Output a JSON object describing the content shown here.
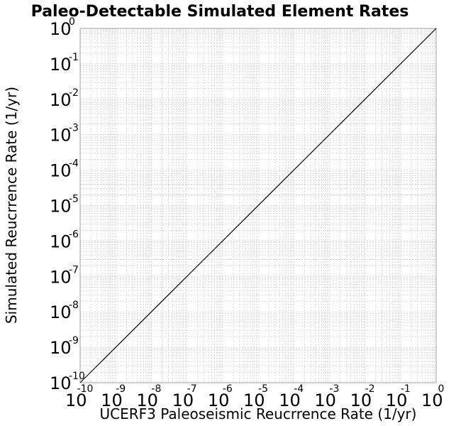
{
  "chart_data": {
    "type": "line",
    "title": "Paleo-Detectable Simulated Element Rates",
    "xlabel": "UCERF3 Paleoseismic Reucrrence Rate (1/yr)",
    "ylabel": "Simulated Reucrrence Rate (1/yr)",
    "x_scale": "log",
    "y_scale": "log",
    "xlim": [
      1e-10,
      1
    ],
    "ylim": [
      1e-10,
      1
    ],
    "grid": true,
    "x_ticks": [
      {
        "base": "10",
        "exp": "-10",
        "value": 1e-10
      },
      {
        "base": "10",
        "exp": "-9",
        "value": 1e-09
      },
      {
        "base": "10",
        "exp": "-8",
        "value": 1e-08
      },
      {
        "base": "10",
        "exp": "-7",
        "value": 1e-07
      },
      {
        "base": "10",
        "exp": "-6",
        "value": 1e-06
      },
      {
        "base": "10",
        "exp": "-5",
        "value": 1e-05
      },
      {
        "base": "10",
        "exp": "-4",
        "value": 0.0001
      },
      {
        "base": "10",
        "exp": "-3",
        "value": 0.001
      },
      {
        "base": "10",
        "exp": "-2",
        "value": 0.01
      },
      {
        "base": "10",
        "exp": "-1",
        "value": 0.1
      },
      {
        "base": "10",
        "exp": "0",
        "value": 1
      }
    ],
    "y_ticks": [
      {
        "base": "10",
        "exp": "-10",
        "value": 1e-10
      },
      {
        "base": "10",
        "exp": "-9",
        "value": 1e-09
      },
      {
        "base": "10",
        "exp": "-8",
        "value": 1e-08
      },
      {
        "base": "10",
        "exp": "-7",
        "value": 1e-07
      },
      {
        "base": "10",
        "exp": "-6",
        "value": 1e-06
      },
      {
        "base": "10",
        "exp": "-5",
        "value": 1e-05
      },
      {
        "base": "10",
        "exp": "-4",
        "value": 0.0001
      },
      {
        "base": "10",
        "exp": "-3",
        "value": 0.001
      },
      {
        "base": "10",
        "exp": "-2",
        "value": 0.01
      },
      {
        "base": "10",
        "exp": "-1",
        "value": 0.1
      },
      {
        "base": "10",
        "exp": "0",
        "value": 1
      }
    ],
    "series": [
      {
        "x": [
          1e-10,
          1
        ],
        "y": [
          1e-10,
          1
        ],
        "color": "#000000"
      }
    ],
    "colors": {
      "grid": "#dcdcdc",
      "frame": "#a0a0a0",
      "line": "#000000"
    }
  }
}
